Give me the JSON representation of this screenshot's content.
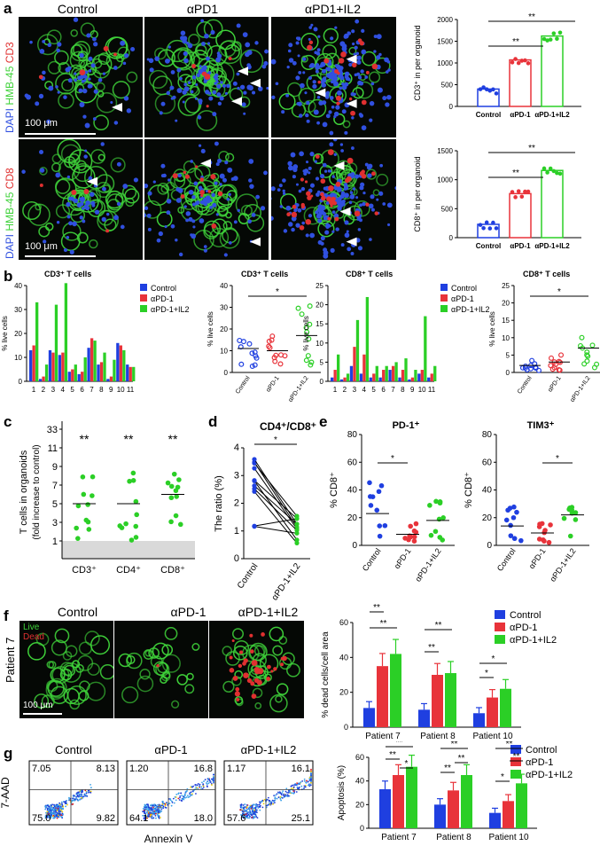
{
  "panels": [
    "a",
    "b",
    "c",
    "d",
    "e",
    "f",
    "g"
  ],
  "colors": {
    "control": "#1f3fe0",
    "apd1": "#e8333a",
    "apd1il2": "#2bcf26",
    "micro_green": "#3fd23a",
    "micro_red": "#e03030",
    "micro_blue": "#3050e0"
  },
  "a": {
    "columns": [
      "Control",
      "αPD1",
      "αPD1+IL2"
    ],
    "row1_label": {
      "dapi": "DAPI",
      "hmb": "HMB-45",
      "marker": "CD3"
    },
    "row2_label": {
      "dapi": "DAPI",
      "hmb": "HMB-45",
      "marker": "CD8"
    },
    "scale": "100 μm"
  },
  "b": {
    "title1": "CD3⁺ T cells",
    "title2": "CD3⁺ T cells",
    "title3": "CD8⁺ T cells",
    "title4": "CD8⁺ T cells",
    "ylabel": "% live cells",
    "legend": [
      "Control",
      "αPD-1",
      "αPD-1+IL2"
    ],
    "sig": "*"
  },
  "c": {
    "ylabel1": "T cells in organoids",
    "ylabel2": "(fold increase to control)",
    "sig": "**"
  },
  "d": {
    "title": "CD4⁺/CD8⁺",
    "ylabel": "The ratio (%)",
    "sig": "*"
  },
  "e": {
    "title1": "PD-1⁺",
    "title2": "TIM3⁺",
    "ylabel": "% CD8⁺",
    "sig": "*"
  },
  "f": {
    "columns": [
      "Control",
      "αPD-1",
      "αPD-1+IL2"
    ],
    "row_label": "Patient 7",
    "live": "Live",
    "dead": "Dead",
    "scale": "100 μm",
    "legend": [
      "Control",
      "αPD-1",
      "αPD-1+IL2"
    ]
  },
  "g": {
    "columns": [
      "Control",
      "αPD-1",
      "αPD-1+IL2"
    ],
    "ylabel": "7-AAD",
    "xlabel": "Annexin V",
    "quadrants": [
      {
        "ul": "7.05",
        "ur": "8.13",
        "ll": "75.0",
        "lr": "9.82"
      },
      {
        "ul": "1.20",
        "ur": "16.8",
        "ll": "64.1",
        "lr": "18.0"
      },
      {
        "ul": "1.17",
        "ur": "16.1",
        "ll": "57.6",
        "lr": "25.1"
      }
    ],
    "legend": [
      "Control",
      "αPD-1",
      "αPD-1+IL2"
    ]
  },
  "chart_data": [
    {
      "id": "a-cd3",
      "type": "bar",
      "categories": [
        "Control",
        "αPD-1",
        "αPD-1+IL2"
      ],
      "values": [
        400,
        1070,
        1620
      ],
      "ylabel": "CD3⁺ in per organoid",
      "ylim": [
        0,
        2000
      ],
      "yticks": [
        0,
        500,
        1000,
        1500,
        2000
      ],
      "sig": [
        "**",
        "**"
      ]
    },
    {
      "id": "a-cd8",
      "type": "bar",
      "categories": [
        "Control",
        "αPD-1",
        "αPD-1+IL2"
      ],
      "values": [
        230,
        760,
        1160
      ],
      "ylabel": "CD8⁺ in per organoid",
      "ylim": [
        0,
        1500
      ],
      "yticks": [
        0,
        500,
        1000,
        1500
      ],
      "sig": [
        "**",
        "**"
      ]
    },
    {
      "id": "b-cd3-bars",
      "type": "bar",
      "categories": [
        "1",
        "2",
        "3",
        "4",
        "5",
        "6",
        "7",
        "8",
        "9",
        "10",
        "11"
      ],
      "ylim": [
        0,
        40
      ],
      "yticks": [
        0,
        10,
        20,
        30,
        40
      ],
      "series": [
        {
          "name": "Control",
          "values": [
            13,
            1,
            13,
            11,
            4,
            3,
            14,
            7,
            1,
            16,
            7
          ]
        },
        {
          "name": "αPD-1",
          "values": [
            15,
            2,
            12,
            12,
            5,
            4,
            18,
            8,
            2,
            15,
            6
          ]
        },
        {
          "name": "αPD-1+IL2",
          "values": [
            33,
            7,
            32,
            41,
            7,
            10,
            17,
            12,
            9,
            13,
            6
          ]
        }
      ]
    },
    {
      "id": "b-cd3-dots",
      "type": "scatter",
      "categories": [
        "Control",
        "αPD-1",
        "αPD-1+IL2"
      ],
      "ylim": [
        0,
        40
      ],
      "yticks": [
        0,
        10,
        20,
        30,
        40
      ],
      "means": [
        11,
        10,
        17
      ]
    },
    {
      "id": "b-cd8-bars",
      "type": "bar",
      "categories": [
        "1",
        "2",
        "3",
        "4",
        "5",
        "6",
        "7",
        "8",
        "9",
        "10",
        "11"
      ],
      "ylim": [
        0,
        25
      ],
      "yticks": [
        0,
        5,
        10,
        15,
        20,
        25
      ],
      "series": [
        {
          "name": "Control",
          "values": [
            1,
            0.5,
            4,
            2,
            1,
            1,
            3,
            1,
            0.5,
            2,
            1
          ]
        },
        {
          "name": "αPD-1",
          "values": [
            3,
            1,
            9,
            7,
            2,
            3,
            4,
            3,
            1,
            3,
            2
          ]
        },
        {
          "name": "αPD-1+IL2",
          "values": [
            7,
            2,
            16,
            22,
            4,
            4,
            5,
            6,
            3,
            17,
            4
          ]
        }
      ]
    },
    {
      "id": "b-cd8-dots",
      "type": "scatter",
      "categories": [
        "Control",
        "αPD-1",
        "αPD-1+IL2"
      ],
      "ylim": [
        0,
        25
      ],
      "yticks": [
        0,
        5,
        10,
        15,
        20,
        25
      ],
      "means": [
        2,
        3,
        7
      ]
    },
    {
      "id": "c",
      "type": "scatter",
      "categories": [
        "CD3⁺",
        "CD4⁺",
        "CD8⁺"
      ],
      "yticks": [
        "1",
        "3",
        "5",
        "7",
        "9",
        "11",
        "33"
      ],
      "means": [
        5,
        5,
        6
      ]
    },
    {
      "id": "d",
      "type": "line",
      "categories": [
        "Control",
        "αPD-1+IL2"
      ],
      "ylim": [
        0,
        4
      ],
      "yticks": [
        0,
        1,
        2,
        3,
        4
      ]
    },
    {
      "id": "e-pd1",
      "type": "scatter",
      "categories": [
        "Control",
        "αPD-1",
        "αPD-1+IL2"
      ],
      "ylim": [
        0,
        80
      ],
      "yticks": [
        0,
        20,
        40,
        60,
        80
      ],
      "means": [
        23,
        8,
        18
      ]
    },
    {
      "id": "e-tim3",
      "type": "scatter",
      "categories": [
        "Control",
        "αPD-1",
        "αPD-1+IL2"
      ],
      "ylim": [
        0,
        80
      ],
      "yticks": [
        0,
        20,
        40,
        60,
        80
      ],
      "means": [
        14,
        9,
        22
      ]
    },
    {
      "id": "f",
      "type": "bar",
      "ylabel": "% dead cells/cell area",
      "categories": [
        "Patient 7",
        "Patient 8",
        "Patient 10"
      ],
      "ylim": [
        0,
        60
      ],
      "yticks": [
        0,
        20,
        40,
        60
      ],
      "series": [
        {
          "name": "Control",
          "values": [
            11,
            10,
            8
          ]
        },
        {
          "name": "αPD-1",
          "values": [
            35,
            30,
            17
          ]
        },
        {
          "name": "αPD-1+IL2",
          "values": [
            42,
            31,
            22
          ]
        }
      ]
    },
    {
      "id": "g",
      "type": "bar",
      "ylabel": "Apoptosis (%)",
      "categories": [
        "Patient 7",
        "Patient 8",
        "Patient 10"
      ],
      "ylim": [
        0,
        60
      ],
      "yticks": [
        0,
        20,
        40,
        60
      ],
      "series": [
        {
          "name": "Control",
          "values": [
            33,
            20,
            13
          ]
        },
        {
          "name": "αPD-1",
          "values": [
            45,
            32,
            23
          ]
        },
        {
          "name": "αPD-1+IL2",
          "values": [
            52,
            45,
            38
          ]
        }
      ]
    }
  ]
}
